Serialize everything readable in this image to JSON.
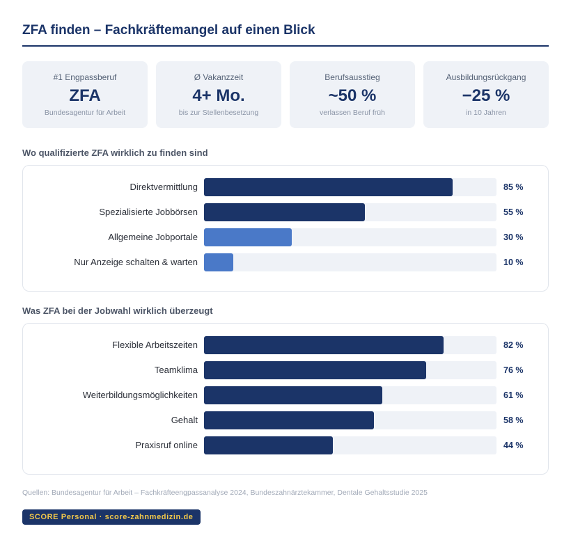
{
  "title": "ZFA finden – Fachkräftemangel auf einen Blick",
  "kpis": [
    {
      "label": "#1 Engpassberuf",
      "value": "ZFA",
      "note": "Bundesagentur für Arbeit"
    },
    {
      "label": "Ø Vakanzzeit",
      "value": "4+ Mo.",
      "note": "bis zur Stellenbesetzung"
    },
    {
      "label": "Berufsausstieg",
      "value": "~50 %",
      "note": "verlassen Beruf früh"
    },
    {
      "label": "Ausbildungsrückgang",
      "value": "−25 %",
      "note": "in 10 Jahren"
    }
  ],
  "colors": {
    "dark": "#1b3468",
    "accent": "#4a79c8",
    "track": "#eff2f7",
    "badge_text": "#f1c84b"
  },
  "chart_data": [
    {
      "type": "bar",
      "orientation": "horizontal",
      "title": "Wo qualifizierte ZFA wirklich zu finden sind",
      "categories": [
        "Direktvermittlung",
        "Spezialisierte Jobbörsen",
        "Allgemeine Jobportale",
        "Nur Anzeige schalten & warten"
      ],
      "values": [
        85,
        55,
        30,
        10
      ],
      "value_labels": [
        "85 %",
        "55 %",
        "30 %",
        "10 %"
      ],
      "bar_colors": [
        "#1b3468",
        "#1b3468",
        "#4a79c8",
        "#4a79c8"
      ],
      "xlim": [
        0,
        100
      ]
    },
    {
      "type": "bar",
      "orientation": "horizontal",
      "title": "Was ZFA bei der Jobwahl wirklich überzeugt",
      "categories": [
        "Flexible Arbeitszeiten",
        "Teamklima",
        "Weiterbildungsmöglichkeiten",
        "Gehalt",
        "Praxisruf online"
      ],
      "values": [
        82,
        76,
        61,
        58,
        44
      ],
      "value_labels": [
        "82 %",
        "76 %",
        "61 %",
        "58 %",
        "44 %"
      ],
      "bar_colors": [
        "#1b3468",
        "#1b3468",
        "#1b3468",
        "#1b3468",
        "#1b3468"
      ],
      "xlim": [
        0,
        100
      ]
    }
  ],
  "sources": "Quellen: Bundesagentur für Arbeit – Fachkräfteengpassanalyse 2024, Bundeszahnärztekammer, Dentale Gehaltsstudie 2025",
  "badge": "SCORE Personal · score-zahnmedizin.de"
}
